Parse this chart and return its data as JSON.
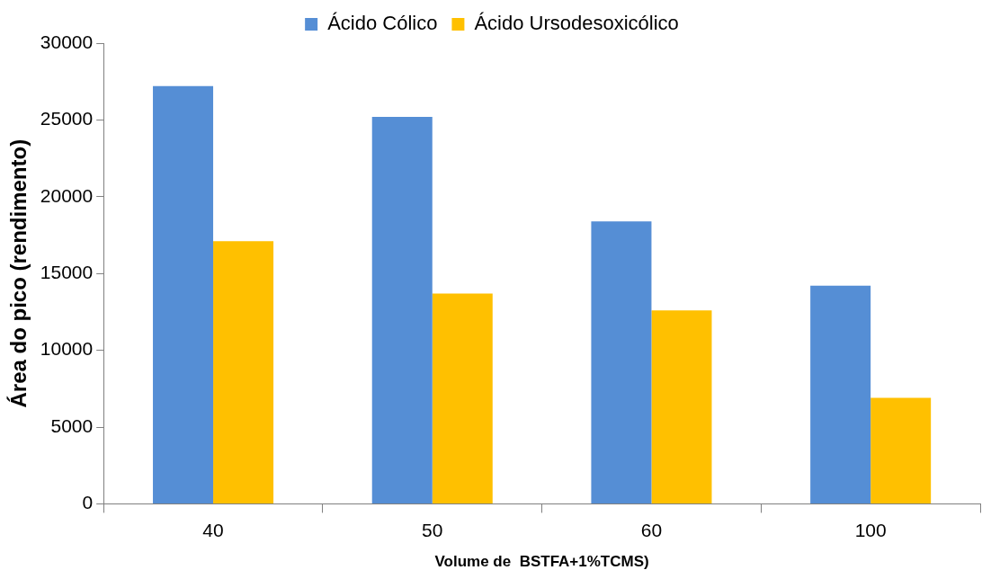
{
  "chart_data": {
    "type": "bar",
    "xlabel": "Volume de  BSTFA+1%TCMS)",
    "ylabel": "Área do pico (rendimento)",
    "categories": [
      "40",
      "50",
      "60",
      "100"
    ],
    "series": [
      {
        "name": "Ácido Cólico",
        "color": "#558ed5",
        "values": [
          27200,
          25200,
          18400,
          14200
        ]
      },
      {
        "name": "Ácido Ursodesoxicólico",
        "color": "#ffc000",
        "values": [
          17100,
          13700,
          12600,
          6900
        ]
      }
    ],
    "ylim": [
      0,
      30000
    ],
    "yticks": [
      0,
      5000,
      10000,
      15000,
      20000,
      25000,
      30000
    ],
    "grid": false,
    "legend": "top"
  }
}
